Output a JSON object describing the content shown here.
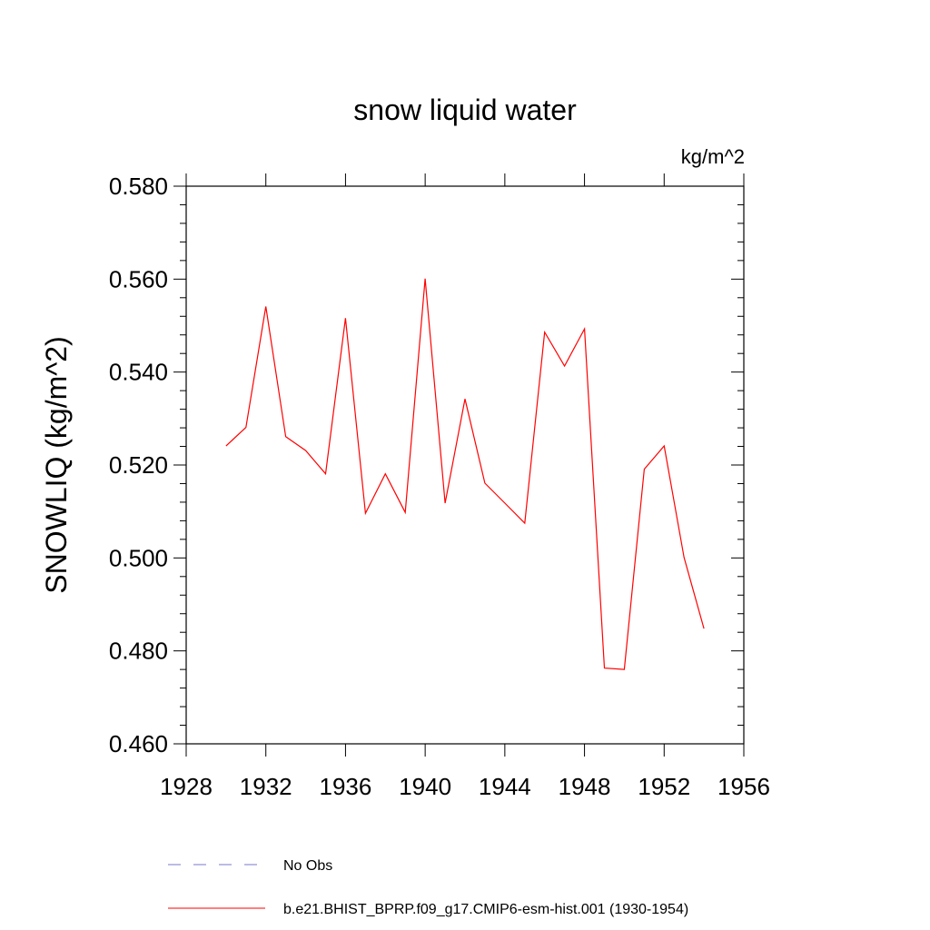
{
  "chart_data": {
    "type": "line",
    "title": "snow liquid water",
    "units_label": "kg/m^2",
    "ylabel": "SNOWLIQ  (kg/m^2)",
    "xlabel": "",
    "xlim": [
      1928,
      1956
    ],
    "ylim": [
      0.46,
      0.58
    ],
    "x_ticks": [
      1928,
      1932,
      1936,
      1940,
      1944,
      1948,
      1952,
      1956
    ],
    "x_tick_labels": [
      "1928",
      "1932",
      "1936",
      "1940",
      "1944",
      "1948",
      "1952",
      "1956"
    ],
    "y_ticks": [
      0.46,
      0.48,
      0.5,
      0.52,
      0.54,
      0.56,
      0.58
    ],
    "y_tick_labels": [
      "0.460",
      "0.480",
      "0.500",
      "0.520",
      "0.540",
      "0.560",
      "0.580"
    ],
    "grid": false,
    "legend_placement": "bottom",
    "series": [
      {
        "name": "b.e21.BHIST_BPRP.f09_g17.CMIP6-esm-hist.001 (1930-1954)",
        "color": "#ff0000",
        "style": "solid",
        "x": [
          1930,
          1931,
          1932,
          1933,
          1934,
          1935,
          1936,
          1937,
          1938,
          1939,
          1940,
          1941,
          1942,
          1943,
          1944,
          1945,
          1946,
          1947,
          1948,
          1949,
          1950,
          1951,
          1952,
          1953,
          1954
        ],
        "y": [
          0.5241,
          0.5281,
          0.5541,
          0.5261,
          0.5231,
          0.5181,
          0.5516,
          0.5096,
          0.5181,
          0.5098,
          0.5601,
          0.5118,
          0.5342,
          0.5161,
          0.5118,
          0.5075,
          0.5486,
          0.5413,
          0.5493,
          0.4763,
          0.476,
          0.5191,
          0.5241,
          0.5001,
          0.4848
        ]
      }
    ],
    "legend": [
      {
        "label": "No Obs",
        "color": "#7777cc",
        "style": "dashed"
      },
      {
        "label": "b.e21.BHIST_BPRP.f09_g17.CMIP6-esm-hist.001 (1930-1954)",
        "color": "#ff0000",
        "style": "solid"
      }
    ]
  }
}
